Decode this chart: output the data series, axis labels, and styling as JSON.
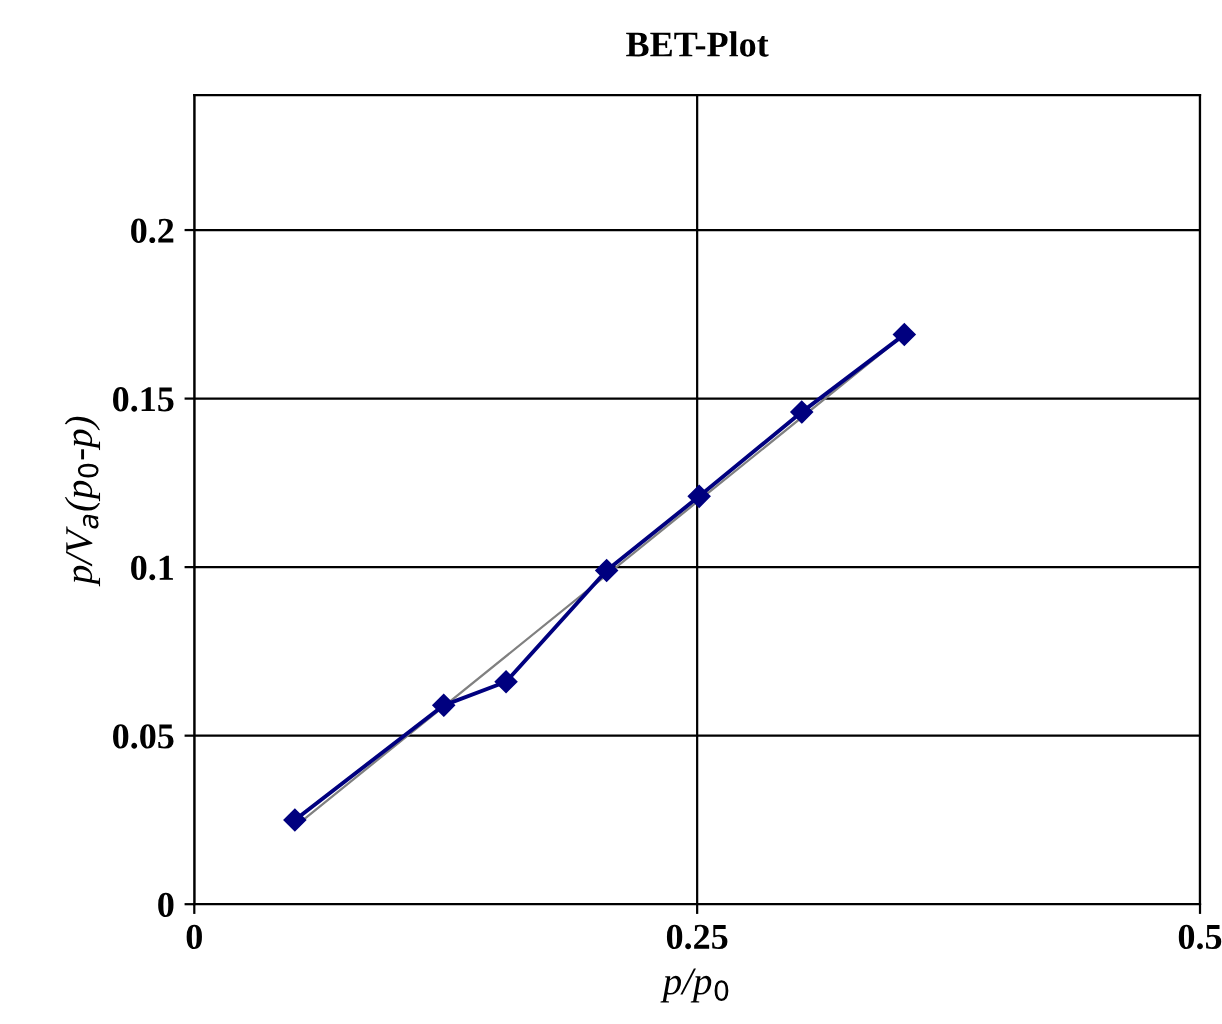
{
  "chart_data": {
    "type": "line",
    "title": "BET-Plot",
    "xlabel": "p/p$_{0}$",
    "ylabel": "p/V$_{a}$(p$_{0}$-p)",
    "x": [
      0.05,
      0.124,
      0.155,
      0.205,
      0.251,
      0.302,
      0.353
    ],
    "series": [
      {
        "color": "#00007f",
        "values": [
          0.025,
          0.059,
          0.066,
          0.099,
          0.121,
          0.146,
          0.169
        ],
        "marker": "diamond"
      },
      {
        "type": "line",
        "color": "#808080",
        "x": [
          0.05,
          0.353
        ],
        "values": [
          0.023,
          0.169
        ],
        "marker": "none"
      }
    ],
    "xlim": [
      0,
      0.5
    ],
    "xticks": [
      0,
      0.25,
      0.5
    ],
    "ylim": [
      0,
      0.24
    ],
    "yticks": [
      0,
      0.05,
      0.1,
      0.15,
      0.2
    ],
    "grid": true,
    "legend": false
  }
}
